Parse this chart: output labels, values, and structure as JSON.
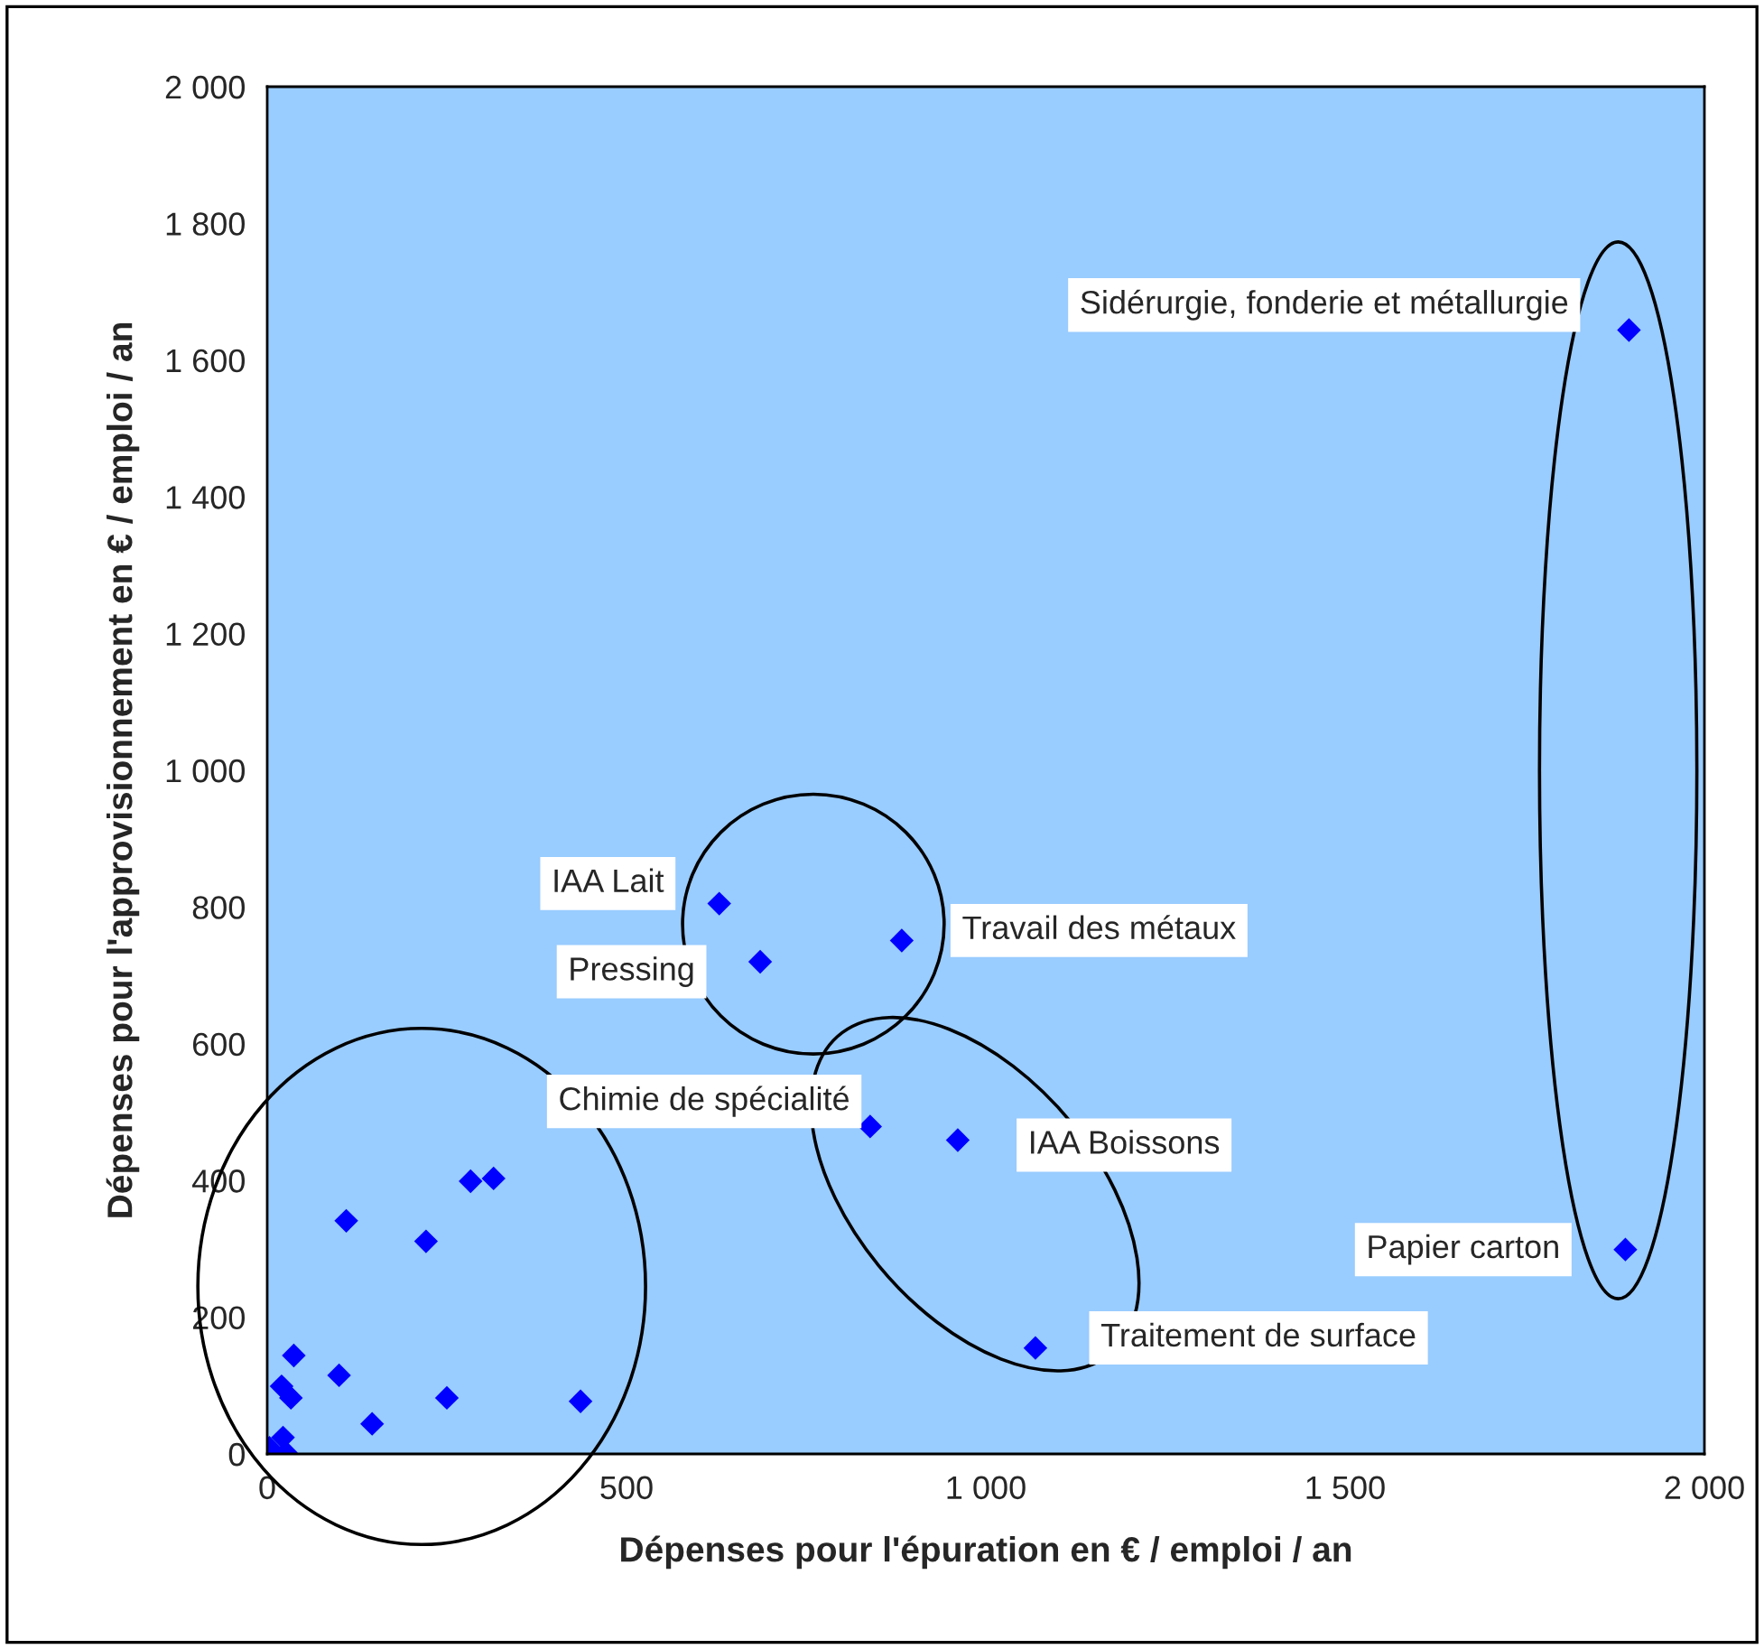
{
  "chart_data": {
    "type": "scatter",
    "xlabel": "Dépenses pour l'épuration en € / emploi / an",
    "ylabel": "Dépenses pour l'approvisionnement en € / emploi / an",
    "x": [
      110,
      221,
      283,
      315,
      37,
      100,
      20,
      33,
      250,
      436,
      146,
      22,
      3,
      26,
      629,
      686,
      883,
      839,
      961,
      1069,
      1890,
      1895
    ],
    "series": [
      {
        "color": "#0000ff",
        "values": [
          341,
          311,
          399,
          403,
          144,
          115,
          99,
          82,
          82,
          77,
          44,
          24,
          9,
          2,
          805,
          720,
          751,
          479,
          459,
          155,
          299,
          1644
        ]
      }
    ],
    "marker": "diamond",
    "xlim": [
      0,
      2000
    ],
    "xticks": [
      0,
      500,
      {
        "value": 1000,
        "label": "1 000"
      },
      {
        "value": 1500,
        "label": "1 500"
      },
      {
        "value": 2000,
        "label": "2 000"
      }
    ],
    "ylim": [
      0,
      2000
    ],
    "yticks": [
      0,
      200,
      400,
      600,
      800,
      {
        "value": 1000,
        "label": "1 000"
      },
      {
        "value": 1200,
        "label": "1 200"
      },
      {
        "value": 1400,
        "label": "1 400"
      },
      {
        "value": 1600,
        "label": "1 600"
      },
      {
        "value": 1800,
        "label": "1 800"
      },
      {
        "value": 2000,
        "label": "2 000"
      }
    ],
    "grid": false,
    "legend": false,
    "annotations": [
      {
        "text": "Sidérurgie, fonderie et métallurgie",
        "x": 1895,
        "y": 1644
      },
      {
        "text": "IAA Lait",
        "x": 629,
        "y": 805
      },
      {
        "text": "Pressing",
        "x": 686,
        "y": 720
      },
      {
        "text": "Travail des métaux",
        "x": 883,
        "y": 751
      },
      {
        "text": "Chimie de spécialité",
        "x": 839,
        "y": 479
      },
      {
        "text": "IAA Boissons",
        "x": 961,
        "y": 459
      },
      {
        "text": "Traitement de surface",
        "x": 1069,
        "y": 155
      },
      {
        "text": "Papier carton",
        "x": 1890,
        "y": 299
      }
    ]
  }
}
